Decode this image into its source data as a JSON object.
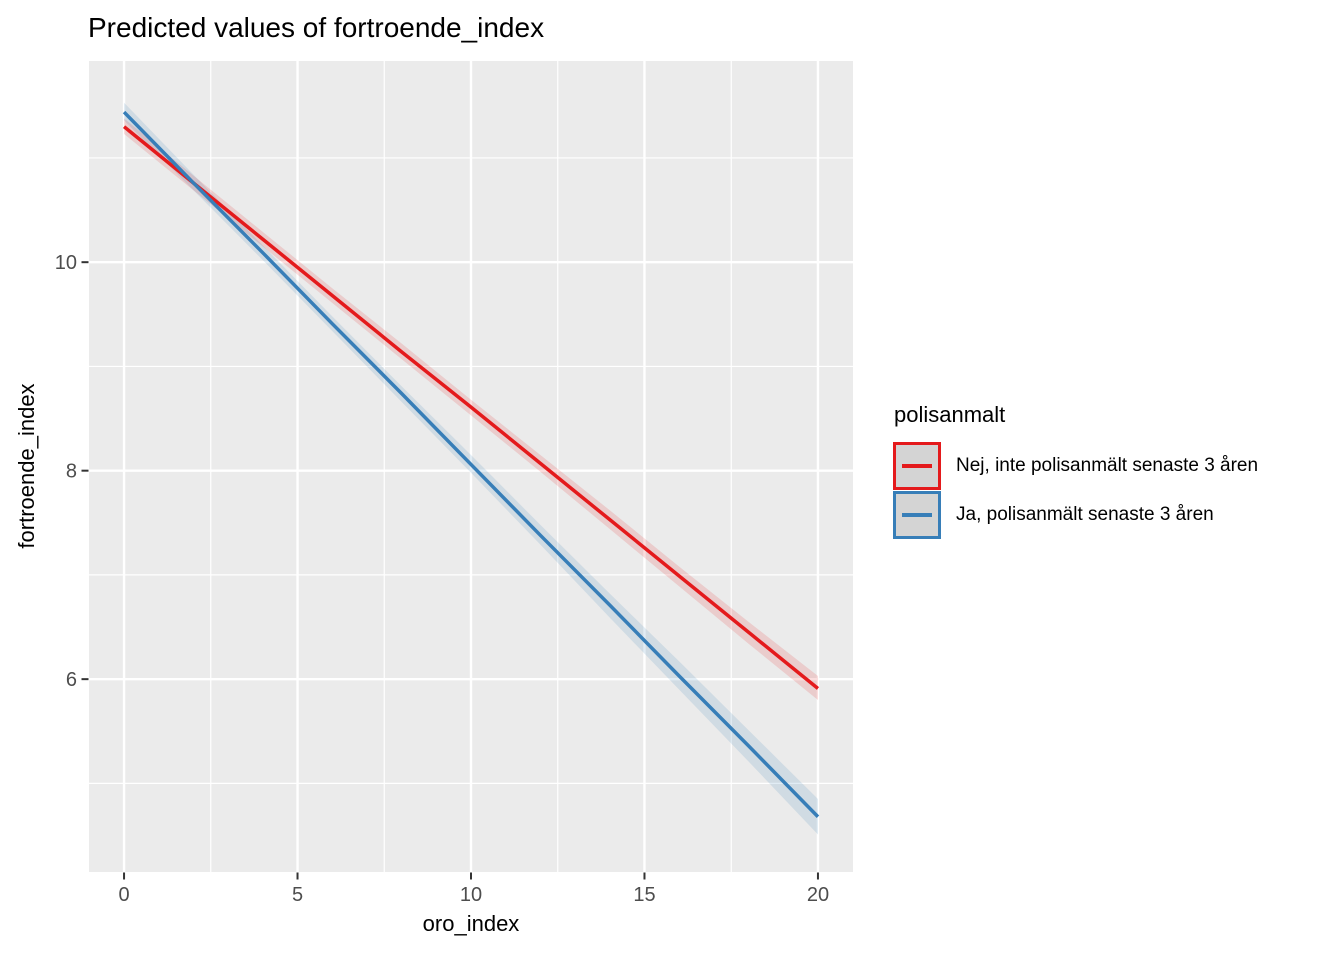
{
  "title": "Predicted values of fortroende_index",
  "colors": {
    "background": "#FFFFFF",
    "panel": "#EBEBEB",
    "grid": "#FFFFFF",
    "tick": "#333333",
    "tick_label": "#4D4D4D",
    "text": "#000000",
    "legend_key_fill": "#D4D4D4",
    "series_red": "#E41A1C",
    "series_blue": "#377EB8",
    "ribbon_opacity": 0.15
  },
  "chart_data": {
    "type": "line",
    "title": "Predicted values of fortroende_index",
    "xlabel": "oro_index",
    "ylabel": "fortroende_index",
    "xlim": [
      -1.01,
      21.01
    ],
    "ylim": [
      4.15,
      11.93
    ],
    "x_ticks": [
      0,
      5,
      10,
      15,
      20
    ],
    "x_minor_ticks": [
      2.5,
      7.5,
      12.5,
      17.5
    ],
    "y_ticks": [
      6,
      8,
      10
    ],
    "y_minor_ticks": [
      5,
      7,
      9,
      11
    ],
    "grid": true,
    "legend_position": "right",
    "legend_title": "polisanmalt",
    "x": [
      0,
      2,
      4,
      6,
      8,
      10,
      12,
      14,
      16,
      18,
      20
    ],
    "series": [
      {
        "name": "Nej, inte polisanmält senaste 3 åren",
        "color": "#E41A1C",
        "predicted": [
          11.3,
          10.76,
          10.22,
          9.68,
          9.14,
          8.61,
          8.07,
          7.53,
          6.99,
          6.45,
          5.91
        ],
        "conf_low": [
          11.23,
          10.69,
          10.15,
          9.61,
          9.07,
          8.53,
          7.99,
          7.44,
          6.89,
          6.34,
          5.8
        ],
        "conf_high": [
          11.38,
          10.83,
          10.29,
          9.75,
          9.22,
          8.68,
          8.15,
          7.62,
          7.08,
          6.55,
          6.03
        ]
      },
      {
        "name": "Ja, polisanmält senaste 3 åren",
        "color": "#377EB8",
        "predicted": [
          11.44,
          10.76,
          10.09,
          9.41,
          8.74,
          8.06,
          7.38,
          6.71,
          6.03,
          5.36,
          4.68
        ],
        "conf_low": [
          11.36,
          10.69,
          10.02,
          9.34,
          8.66,
          7.98,
          7.29,
          6.59,
          5.9,
          5.21,
          4.51
        ],
        "conf_high": [
          11.53,
          10.84,
          10.16,
          9.48,
          8.81,
          8.15,
          7.48,
          6.82,
          6.17,
          5.51,
          4.85
        ]
      }
    ]
  }
}
